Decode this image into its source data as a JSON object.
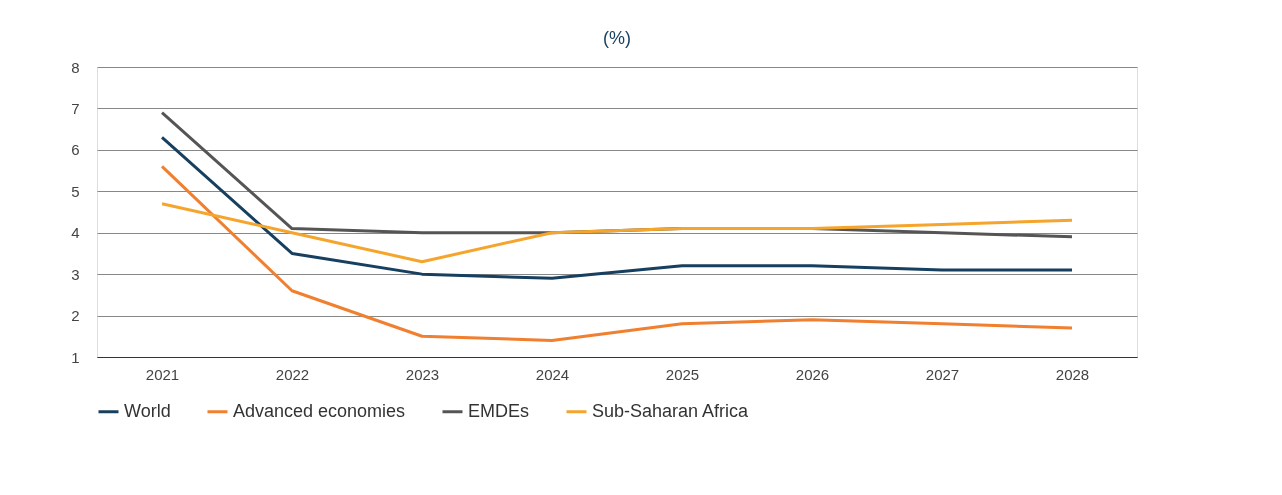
{
  "chart_data": {
    "type": "line",
    "title": "(%)",
    "categories": [
      "2021",
      "2022",
      "2023",
      "2024",
      "2025",
      "2026",
      "2027",
      "2028"
    ],
    "series": [
      {
        "name": "World",
        "color": "#173f5f",
        "values": [
          6.3,
          3.5,
          3.0,
          2.9,
          3.2,
          3.2,
          3.1,
          3.1
        ]
      },
      {
        "name": "Advanced economies",
        "color": "#f07f2f",
        "values": [
          5.6,
          2.6,
          1.5,
          1.4,
          1.8,
          1.9,
          1.8,
          1.7
        ]
      },
      {
        "name": "EMDEs",
        "color": "#555555",
        "values": [
          6.9,
          4.1,
          4.0,
          4.0,
          4.1,
          4.1,
          4.0,
          3.9
        ]
      },
      {
        "name": "Sub-Saharan Africa",
        "color": "#f5a42c",
        "values": [
          4.7,
          4.0,
          3.3,
          4.0,
          4.1,
          4.1,
          4.2,
          4.3
        ]
      }
    ],
    "ylim": [
      1,
      8
    ],
    "yticks": [
      1,
      2,
      3,
      4,
      5,
      6,
      7,
      8
    ],
    "grid": "y",
    "legend": "bottom",
    "marker": "none",
    "line_style": "solid"
  }
}
